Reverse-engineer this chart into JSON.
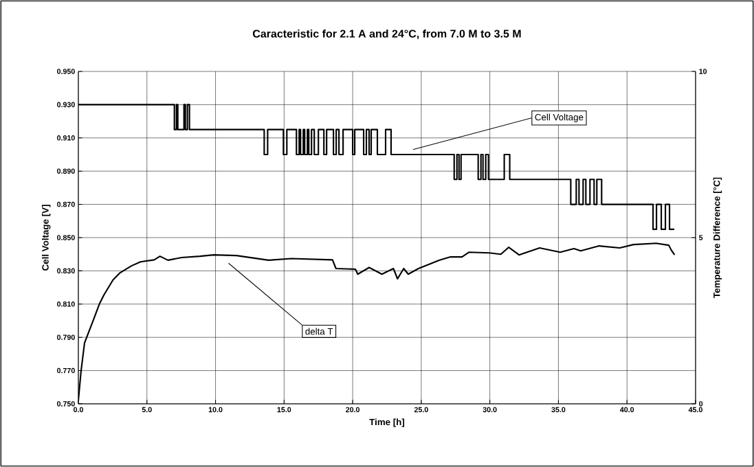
{
  "chart_data": {
    "type": "line",
    "title": "Caracteristic for 2.1 A and 24°C, from 7.0 M to 3.5 M",
    "xlabel": "Time [h]",
    "ylabel": "Cell Voltage [V]",
    "y2label": "Temperature Difference [°C]",
    "xlim": [
      0,
      45
    ],
    "xticks": [
      {
        "value": 0,
        "label": "0.0"
      },
      {
        "value": 5,
        "label": "5.0"
      },
      {
        "value": 10,
        "label": "10.0"
      },
      {
        "value": 15,
        "label": "15.0"
      },
      {
        "value": 20,
        "label": "20.0"
      },
      {
        "value": 25,
        "label": "25.0"
      },
      {
        "value": 30,
        "label": "30.0"
      },
      {
        "value": 35,
        "label": "35.0"
      },
      {
        "value": 40,
        "label": "40.0"
      },
      {
        "value": 45,
        "label": "45.0"
      }
    ],
    "ylim": [
      0.75,
      0.95
    ],
    "yticks": [
      {
        "value": 0.75,
        "label": "0.750"
      },
      {
        "value": 0.77,
        "label": "0.770"
      },
      {
        "value": 0.79,
        "label": "0.790"
      },
      {
        "value": 0.81,
        "label": "0.810"
      },
      {
        "value": 0.83,
        "label": "0.830"
      },
      {
        "value": 0.85,
        "label": "0.850"
      },
      {
        "value": 0.87,
        "label": "0.870"
      },
      {
        "value": 0.89,
        "label": "0.890"
      },
      {
        "value": 0.91,
        "label": "0.910"
      },
      {
        "value": 0.93,
        "label": "0.930"
      },
      {
        "value": 0.95,
        "label": "0.950"
      }
    ],
    "y2lim": [
      0,
      10
    ],
    "y2ticks": [
      0,
      5,
      10
    ],
    "grid": true,
    "series": [
      {
        "type": "step",
        "color": "#000000",
        "x": [
          0,
          7.0,
          7.15,
          7.25,
          7.7,
          7.8,
          7.95,
          8.1,
          13.55,
          13.8,
          14.95,
          15.2,
          15.9,
          16.1,
          16.2,
          16.4,
          16.5,
          16.7,
          16.8,
          17.0,
          17.2,
          17.5,
          17.9,
          18.1,
          18.6,
          18.8,
          19.0,
          19.3,
          20.0,
          20.15,
          20.8,
          21.0,
          21.2,
          21.35,
          21.8,
          22.4,
          22.8,
          27.4,
          27.6,
          27.75,
          27.9,
          29.15,
          29.35,
          29.5,
          29.7,
          29.9,
          31.05,
          31.45,
          35.9,
          36.3,
          36.5,
          36.8,
          37.0,
          37.3,
          37.6,
          37.8,
          38.15,
          41.9,
          42.15,
          42.5,
          42.8,
          43.1,
          43.45
        ],
        "values": [
          0.93,
          0.915,
          0.93,
          0.915,
          0.93,
          0.915,
          0.93,
          0.915,
          0.9,
          0.915,
          0.9,
          0.915,
          0.9,
          0.915,
          0.9,
          0.915,
          0.9,
          0.915,
          0.9,
          0.915,
          0.9,
          0.915,
          0.9,
          0.915,
          0.9,
          0.915,
          0.9,
          0.915,
          0.9,
          0.915,
          0.9,
          0.915,
          0.9,
          0.915,
          0.9,
          0.915,
          0.9,
          0.885,
          0.9,
          0.885,
          0.9,
          0.885,
          0.9,
          0.885,
          0.9,
          0.885,
          0.9,
          0.885,
          0.87,
          0.885,
          0.87,
          0.885,
          0.87,
          0.885,
          0.87,
          0.885,
          0.87,
          0.855,
          0.87,
          0.855,
          0.87,
          0.855,
          0.855
        ]
      },
      {
        "axis": "y2",
        "color": "#000000",
        "x": [
          0,
          0.2,
          0.45,
          0.7,
          1.03,
          1.53,
          1.87,
          2.53,
          3.03,
          3.87,
          4.53,
          5.53,
          5.95,
          6.53,
          7.53,
          8.87,
          9.87,
          11.53,
          13.87,
          15.53,
          18.53,
          18.78,
          20.2,
          20.37,
          21.2,
          22.13,
          22.97,
          23.27,
          23.72,
          24.05,
          24.8,
          26.3,
          27.13,
          27.97,
          28.47,
          29.97,
          30.8,
          31.38,
          32.13,
          33.63,
          35.13,
          36.13,
          36.63,
          37.97,
          39.47,
          40.47,
          42.13,
          43.05,
          43.22,
          43.47
        ],
        "values": [
          0.1,
          1.0,
          1.83,
          2.1,
          2.45,
          3.0,
          3.28,
          3.73,
          3.94,
          4.15,
          4.27,
          4.33,
          4.44,
          4.32,
          4.4,
          4.44,
          4.48,
          4.46,
          4.32,
          4.37,
          4.33,
          4.07,
          4.05,
          3.9,
          4.1,
          3.9,
          4.07,
          3.76,
          4.07,
          3.9,
          4.07,
          4.32,
          4.42,
          4.42,
          4.56,
          4.54,
          4.5,
          4.71,
          4.48,
          4.69,
          4.56,
          4.67,
          4.6,
          4.75,
          4.69,
          4.79,
          4.83,
          4.77,
          4.63,
          4.48
        ]
      }
    ],
    "annotations": [
      "Cell Voltage",
      "delta T"
    ]
  }
}
